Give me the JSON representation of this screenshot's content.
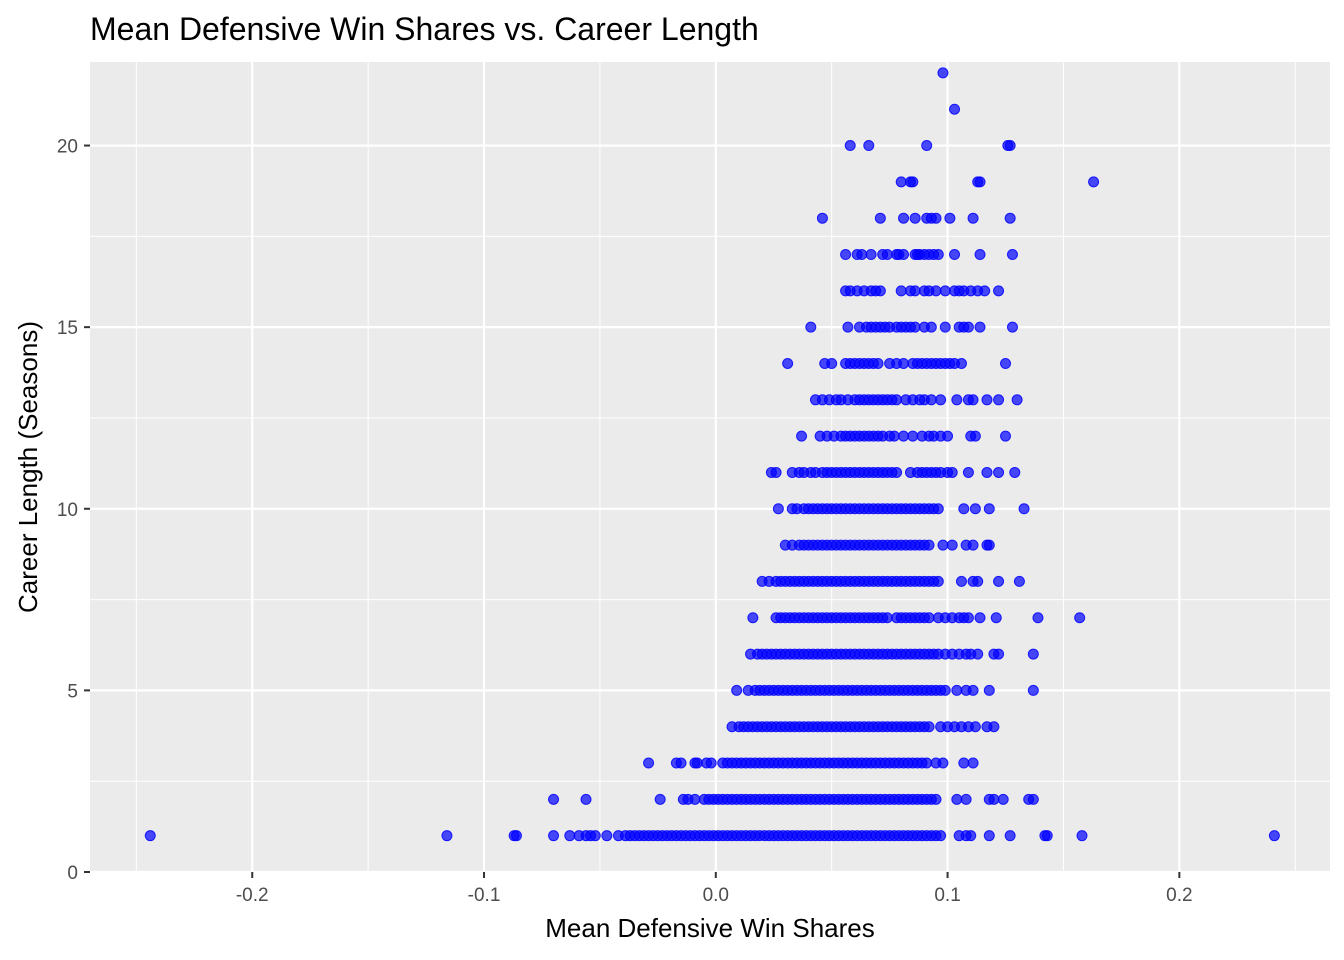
{
  "chart_data": {
    "type": "scatter",
    "title": "Mean Defensive Win Shares vs. Career Length",
    "xlabel": "Mean Defensive Win Shares",
    "ylabel": "Career Length (Seasons)",
    "xlim": [
      -0.27,
      0.265
    ],
    "ylim": [
      0,
      22.3
    ],
    "x_ticks": [
      -0.2,
      -0.1,
      0.0,
      0.1,
      0.2
    ],
    "x_tick_labels": [
      "-0.2",
      "-0.1",
      "0.0",
      "0.1",
      "0.2"
    ],
    "y_ticks": [
      0,
      5,
      10,
      15,
      20
    ],
    "y_tick_labels": [
      "0",
      "5",
      "10",
      "15",
      "20"
    ],
    "grid": true,
    "legend": "none",
    "colors": {
      "point": "#0000ff",
      "panel": "#ebebeb",
      "grid": "#ffffff"
    },
    "rows": [
      {
        "y": 22,
        "x": [
          0.098
        ]
      },
      {
        "y": 21,
        "x": [
          0.103
        ]
      },
      {
        "y": 20,
        "x": [
          0.058,
          0.066,
          0.091,
          0.126,
          0.127
        ]
      },
      {
        "y": 19,
        "x": [
          0.08,
          0.084,
          0.085,
          0.113,
          0.114,
          0.163
        ]
      },
      {
        "y": 18,
        "x": [
          0.046,
          0.071,
          0.081,
          0.086,
          0.091,
          0.093,
          0.095,
          0.101,
          0.111,
          0.127
        ]
      },
      {
        "y": 17,
        "x": [
          0.056,
          0.061,
          0.063,
          0.067,
          0.072,
          0.074,
          0.078,
          0.079,
          0.081,
          0.086,
          0.087,
          0.088,
          0.09,
          0.092,
          0.094,
          0.096,
          0.103,
          0.114,
          0.128
        ]
      },
      {
        "y": 16,
        "x": [
          0.056,
          0.058,
          0.061,
          0.064,
          0.067,
          0.069,
          0.071,
          0.08,
          0.084,
          0.086,
          0.09,
          0.092,
          0.095,
          0.099,
          0.103,
          0.105,
          0.107,
          0.11,
          0.113,
          0.116,
          0.122
        ]
      },
      {
        "y": 15,
        "x": [
          0.041,
          0.057,
          0.062,
          0.065,
          0.067,
          0.069,
          0.071,
          0.073,
          0.075,
          0.078,
          0.08,
          0.082,
          0.084,
          0.086,
          0.09,
          0.093,
          0.099,
          0.105,
          0.107,
          0.109,
          0.114,
          0.128
        ]
      },
      {
        "y": 14,
        "x": [
          0.031,
          0.047,
          0.05,
          0.056,
          0.058,
          0.06,
          0.062,
          0.064,
          0.066,
          0.068,
          0.07,
          0.075,
          0.078,
          0.081,
          0.085,
          0.087,
          0.089,
          0.091,
          0.093,
          0.095,
          0.097,
          0.099,
          0.101,
          0.103,
          0.106,
          0.125
        ]
      },
      {
        "y": 13,
        "x": [
          0.043,
          0.046,
          0.049,
          0.052,
          0.054,
          0.057,
          0.06,
          0.062,
          0.064,
          0.066,
          0.068,
          0.07,
          0.072,
          0.074,
          0.076,
          0.078,
          0.082,
          0.085,
          0.088,
          0.09,
          0.093,
          0.097,
          0.104,
          0.109,
          0.111,
          0.117,
          0.122,
          0.13
        ]
      },
      {
        "y": 12,
        "x": [
          0.037,
          0.045,
          0.048,
          0.051,
          0.054,
          0.056,
          0.058,
          0.06,
          0.062,
          0.064,
          0.066,
          0.068,
          0.07,
          0.072,
          0.075,
          0.077,
          0.081,
          0.085,
          0.089,
          0.092,
          0.094,
          0.097,
          0.1,
          0.11,
          0.112,
          0.125
        ]
      },
      {
        "y": 11,
        "x": [
          0.024,
          0.026,
          0.033,
          0.036,
          0.038,
          0.041,
          0.043,
          0.046,
          0.048,
          0.05,
          0.052,
          0.054,
          0.056,
          0.058,
          0.06,
          0.062,
          0.064,
          0.066,
          0.068,
          0.07,
          0.072,
          0.074,
          0.076,
          0.078,
          0.084,
          0.087,
          0.089,
          0.091,
          0.093,
          0.095,
          0.097,
          0.1,
          0.102,
          0.109,
          0.117,
          0.122,
          0.129
        ]
      },
      {
        "y": 10,
        "x": [
          0.027,
          0.033,
          0.035,
          0.038,
          0.04,
          0.042,
          0.044,
          0.046,
          0.048,
          0.05,
          0.052,
          0.054,
          0.056,
          0.058,
          0.06,
          0.062,
          0.064,
          0.066,
          0.068,
          0.07,
          0.072,
          0.074,
          0.076,
          0.078,
          0.08,
          0.082,
          0.084,
          0.086,
          0.088,
          0.09,
          0.092,
          0.094,
          0.096,
          0.107,
          0.112,
          0.118,
          0.133
        ]
      },
      {
        "y": 9,
        "x": [
          0.03,
          0.033,
          0.036,
          0.038,
          0.04,
          0.042,
          0.044,
          0.046,
          0.048,
          0.05,
          0.052,
          0.054,
          0.056,
          0.058,
          0.06,
          0.062,
          0.064,
          0.066,
          0.068,
          0.07,
          0.072,
          0.074,
          0.076,
          0.078,
          0.08,
          0.082,
          0.084,
          0.086,
          0.088,
          0.09,
          0.092,
          0.098,
          0.102,
          0.108,
          0.111,
          0.117,
          0.118
        ]
      },
      {
        "y": 8,
        "x": [
          0.02,
          0.023,
          0.026,
          0.028,
          0.03,
          0.032,
          0.034,
          0.036,
          0.038,
          0.04,
          0.042,
          0.044,
          0.046,
          0.048,
          0.05,
          0.052,
          0.054,
          0.056,
          0.058,
          0.06,
          0.062,
          0.064,
          0.066,
          0.068,
          0.07,
          0.072,
          0.074,
          0.076,
          0.078,
          0.08,
          0.082,
          0.084,
          0.086,
          0.088,
          0.09,
          0.092,
          0.094,
          0.096,
          0.106,
          0.111,
          0.113,
          0.122,
          0.131
        ]
      },
      {
        "y": 7,
        "x": [
          0.016,
          0.026,
          0.028,
          0.03,
          0.032,
          0.034,
          0.036,
          0.038,
          0.04,
          0.042,
          0.044,
          0.046,
          0.048,
          0.05,
          0.052,
          0.054,
          0.056,
          0.058,
          0.06,
          0.062,
          0.064,
          0.066,
          0.068,
          0.07,
          0.072,
          0.074,
          0.078,
          0.08,
          0.082,
          0.084,
          0.086,
          0.088,
          0.09,
          0.092,
          0.096,
          0.099,
          0.102,
          0.105,
          0.107,
          0.109,
          0.114,
          0.121,
          0.139,
          0.157
        ]
      },
      {
        "y": 6,
        "x": [
          0.015,
          0.018,
          0.02,
          0.022,
          0.024,
          0.026,
          0.028,
          0.03,
          0.032,
          0.034,
          0.036,
          0.038,
          0.04,
          0.042,
          0.044,
          0.046,
          0.048,
          0.05,
          0.052,
          0.054,
          0.056,
          0.058,
          0.06,
          0.062,
          0.064,
          0.066,
          0.068,
          0.07,
          0.072,
          0.074,
          0.076,
          0.078,
          0.08,
          0.082,
          0.084,
          0.086,
          0.088,
          0.09,
          0.092,
          0.094,
          0.096,
          0.099,
          0.102,
          0.105,
          0.108,
          0.11,
          0.113,
          0.12,
          0.122,
          0.137
        ]
      },
      {
        "y": 5,
        "x": [
          0.009,
          0.014,
          0.017,
          0.019,
          0.021,
          0.023,
          0.025,
          0.027,
          0.029,
          0.031,
          0.033,
          0.035,
          0.037,
          0.039,
          0.041,
          0.043,
          0.045,
          0.047,
          0.049,
          0.051,
          0.053,
          0.055,
          0.057,
          0.059,
          0.061,
          0.063,
          0.065,
          0.067,
          0.069,
          0.071,
          0.073,
          0.075,
          0.077,
          0.079,
          0.081,
          0.083,
          0.085,
          0.087,
          0.089,
          0.091,
          0.093,
          0.095,
          0.097,
          0.099,
          0.104,
          0.108,
          0.111,
          0.118,
          0.137
        ]
      },
      {
        "y": 4,
        "x": [
          0.007,
          0.01,
          0.012,
          0.014,
          0.016,
          0.018,
          0.02,
          0.022,
          0.024,
          0.026,
          0.028,
          0.03,
          0.032,
          0.034,
          0.036,
          0.038,
          0.04,
          0.042,
          0.044,
          0.046,
          0.048,
          0.05,
          0.052,
          0.054,
          0.056,
          0.058,
          0.06,
          0.062,
          0.064,
          0.066,
          0.068,
          0.07,
          0.072,
          0.074,
          0.076,
          0.078,
          0.08,
          0.082,
          0.084,
          0.086,
          0.088,
          0.09,
          0.092,
          0.097,
          0.1,
          0.103,
          0.106,
          0.109,
          0.112,
          0.117,
          0.12
        ]
      },
      {
        "y": 3,
        "x": [
          -0.029,
          -0.017,
          -0.015,
          -0.009,
          -0.008,
          -0.004,
          -0.002,
          0.003,
          0.005,
          0.007,
          0.009,
          0.011,
          0.013,
          0.015,
          0.017,
          0.019,
          0.021,
          0.023,
          0.025,
          0.027,
          0.029,
          0.031,
          0.033,
          0.035,
          0.037,
          0.039,
          0.041,
          0.043,
          0.045,
          0.047,
          0.049,
          0.051,
          0.053,
          0.055,
          0.057,
          0.059,
          0.061,
          0.063,
          0.065,
          0.067,
          0.069,
          0.071,
          0.073,
          0.075,
          0.077,
          0.079,
          0.081,
          0.083,
          0.085,
          0.087,
          0.089,
          0.091,
          0.095,
          0.098,
          0.107,
          0.111
        ]
      },
      {
        "y": 2,
        "x": [
          -0.07,
          -0.056,
          -0.024,
          -0.014,
          -0.012,
          -0.009,
          -0.005,
          -0.003,
          -0.001,
          0.001,
          0.003,
          0.005,
          0.007,
          0.009,
          0.011,
          0.013,
          0.015,
          0.017,
          0.019,
          0.021,
          0.023,
          0.025,
          0.027,
          0.029,
          0.031,
          0.033,
          0.035,
          0.037,
          0.039,
          0.041,
          0.043,
          0.045,
          0.047,
          0.049,
          0.051,
          0.053,
          0.055,
          0.057,
          0.059,
          0.061,
          0.063,
          0.065,
          0.067,
          0.069,
          0.071,
          0.073,
          0.075,
          0.077,
          0.079,
          0.081,
          0.083,
          0.085,
          0.087,
          0.089,
          0.091,
          0.093,
          0.095,
          0.104,
          0.108,
          0.118,
          0.12,
          0.124,
          0.135,
          0.137
        ]
      },
      {
        "y": 1,
        "x": [
          -0.244,
          -0.116,
          -0.087,
          -0.086,
          -0.07,
          -0.063,
          -0.059,
          -0.056,
          -0.054,
          -0.052,
          -0.047,
          -0.042,
          -0.039,
          -0.037,
          -0.035,
          -0.033,
          -0.031,
          -0.029,
          -0.027,
          -0.025,
          -0.023,
          -0.021,
          -0.019,
          -0.017,
          -0.015,
          -0.013,
          -0.011,
          -0.009,
          -0.007,
          -0.005,
          -0.003,
          -0.001,
          0.001,
          0.003,
          0.005,
          0.007,
          0.009,
          0.011,
          0.013,
          0.015,
          0.017,
          0.019,
          0.021,
          0.023,
          0.025,
          0.027,
          0.029,
          0.031,
          0.033,
          0.035,
          0.037,
          0.039,
          0.041,
          0.043,
          0.045,
          0.047,
          0.049,
          0.051,
          0.053,
          0.055,
          0.057,
          0.059,
          0.061,
          0.063,
          0.065,
          0.067,
          0.069,
          0.071,
          0.073,
          0.075,
          0.077,
          0.079,
          0.081,
          0.083,
          0.085,
          0.087,
          0.089,
          0.091,
          0.093,
          0.095,
          0.097,
          0.105,
          0.108,
          0.11,
          0.118,
          0.127,
          0.142,
          0.143,
          0.158,
          0.241
        ]
      }
    ]
  }
}
